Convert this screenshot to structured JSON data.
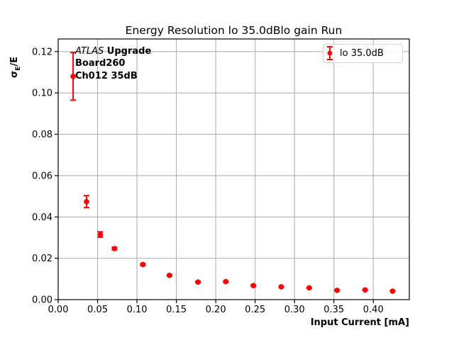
{
  "chart_data": {
    "type": "scatter",
    "title": "Energy Resolution lo 35.0dBlo gain Run",
    "xlabel": "Input Current [mA]",
    "ylabel": "σ_E/E",
    "ylabel_parts": {
      "base": "σ",
      "sub": "E",
      "rest": "/E"
    },
    "xlim": [
      0,
      0.4457
    ],
    "ylim": [
      0,
      0.1261
    ],
    "x_tick_values": [
      0,
      0.05,
      0.1,
      0.15,
      0.2,
      0.25,
      0.3,
      0.35,
      0.4
    ],
    "x_tick_labels": [
      "0.00",
      "0.05",
      "0.10",
      "0.15",
      "0.20",
      "0.25",
      "0.30",
      "0.35",
      "0.40"
    ],
    "y_tick_values": [
      0,
      0.02,
      0.04,
      0.06,
      0.08,
      0.1,
      0.12
    ],
    "y_tick_labels": [
      "0.00",
      "0.02",
      "0.04",
      "0.06",
      "0.08",
      "0.10",
      "0.12"
    ],
    "grid": true,
    "legend": {
      "position": "upper right",
      "label": "lo 35.0dB"
    },
    "annotation": {
      "line1_italic": "ATLAS",
      "line1_bold": " Upgrade",
      "line2": "Board260",
      "line3": "Ch012 35dB"
    },
    "colors": {
      "data": "#ff0000",
      "grid": "#b0b0b0",
      "spine": "#000000",
      "legend_border": "#d2d2d2"
    },
    "series": [
      {
        "name": "lo 35.0dB",
        "color": "#ff0000",
        "marker": "o",
        "points": [
          {
            "x": 0.019,
            "y": 0.108,
            "yerr": 0.0115
          },
          {
            "x": 0.036,
            "y": 0.0474,
            "yerr": 0.0029
          },
          {
            "x": 0.0535,
            "y": 0.0315,
            "yerr": 0.0013
          },
          {
            "x": 0.0715,
            "y": 0.0247,
            "yerr": 0.0006
          },
          {
            "x": 0.1075,
            "y": 0.017,
            "yerr": 0.0005
          },
          {
            "x": 0.1413,
            "y": 0.0117,
            "yerr": 0.0004
          },
          {
            "x": 0.1775,
            "y": 0.0085,
            "yerr": 0.0003
          },
          {
            "x": 0.2128,
            "y": 0.0087,
            "yerr": 0.0003
          },
          {
            "x": 0.2478,
            "y": 0.0068,
            "yerr": 0.0003
          },
          {
            "x": 0.2832,
            "y": 0.0062,
            "yerr": 0.0002
          },
          {
            "x": 0.3186,
            "y": 0.0057,
            "yerr": 0.0002
          },
          {
            "x": 0.354,
            "y": 0.0045,
            "yerr": 0.0002
          },
          {
            "x": 0.3896,
            "y": 0.0047,
            "yerr": 0.0002
          },
          {
            "x": 0.4245,
            "y": 0.0041,
            "yerr": 0.0002
          }
        ]
      }
    ]
  }
}
